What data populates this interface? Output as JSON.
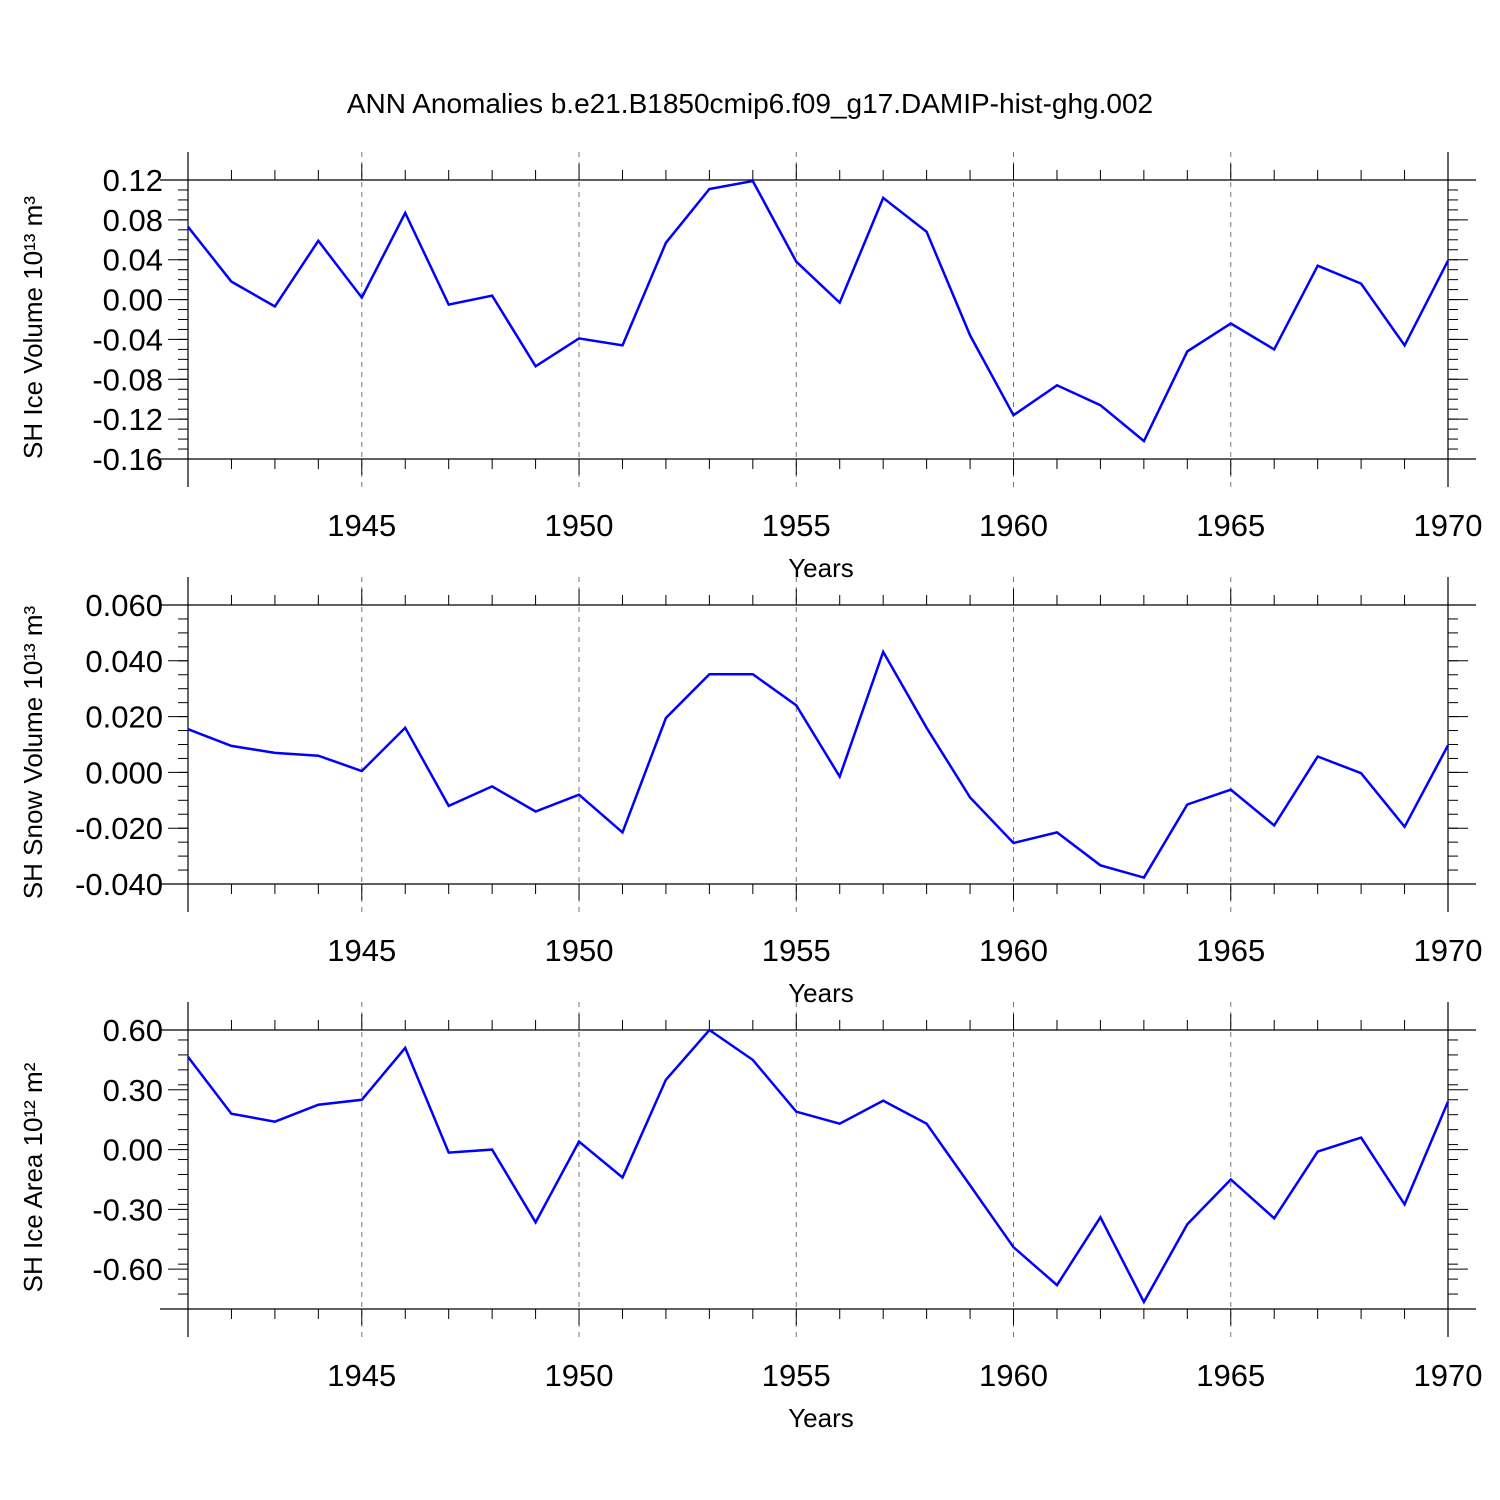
{
  "title": "ANN Anomalies b.e21.B1850cmip6.f09_g17.DAMIP-hist-ghg.002",
  "colors": {
    "line": "#0000ff",
    "frame": "#000000",
    "grid": "#777777"
  },
  "chart_data": [
    {
      "type": "line",
      "xlabel": "Years",
      "ylabel": "SH Ice Volume 10¹³ m³",
      "ylim": [
        -0.16,
        0.12
      ],
      "xlim": [
        1941,
        1970
      ],
      "yticks": [
        "0.12",
        "0.08",
        "0.04",
        "0.00",
        "-0.04",
        "-0.08",
        "-0.12",
        "-0.16"
      ],
      "xticks": [
        "1945",
        "1950",
        "1955",
        "1960",
        "1965",
        "1970"
      ],
      "grid": "vertical dashed at labeled years",
      "series": [
        {
          "x": [
            1941,
            1942,
            1943,
            1944,
            1945,
            1946,
            1947,
            1948,
            1949,
            1950,
            1951,
            1952,
            1953,
            1954,
            1955,
            1956,
            1957,
            1958,
            1959,
            1960,
            1961,
            1962,
            1963,
            1964,
            1965,
            1966,
            1967,
            1968,
            1969,
            1970
          ],
          "values": [
            0.073,
            0.018,
            -0.007,
            0.059,
            0.002,
            0.087,
            -0.005,
            0.004,
            -0.067,
            -0.039,
            -0.046,
            0.057,
            0.111,
            0.119,
            0.038,
            -0.003,
            0.102,
            0.068,
            -0.036,
            -0.116,
            -0.086,
            -0.106,
            -0.142,
            -0.052,
            -0.024,
            -0.05,
            0.034,
            0.016,
            -0.046,
            0.039
          ]
        }
      ]
    },
    {
      "type": "line",
      "xlabel": "Years",
      "ylabel": "SH Snow Volume 10¹³ m³",
      "ylim": [
        -0.04,
        0.06
      ],
      "xlim": [
        1941,
        1970
      ],
      "yticks": [
        "0.060",
        "0.040",
        "0.020",
        "0.000",
        "-0.020",
        "-0.040"
      ],
      "xticks": [
        "1945",
        "1950",
        "1955",
        "1960",
        "1965",
        "1970"
      ],
      "grid": "vertical dashed at labeled years",
      "series": [
        {
          "x": [
            1941,
            1942,
            1943,
            1944,
            1945,
            1946,
            1947,
            1948,
            1949,
            1950,
            1951,
            1952,
            1953,
            1954,
            1955,
            1956,
            1957,
            1958,
            1959,
            1960,
            1961,
            1962,
            1963,
            1964,
            1965,
            1966,
            1967,
            1968,
            1969,
            1970
          ],
          "values": [
            0.0155,
            0.0095,
            0.007,
            0.006,
            0.0005,
            0.016,
            -0.012,
            -0.005,
            -0.014,
            -0.008,
            -0.0215,
            0.0195,
            0.0352,
            0.0352,
            0.024,
            -0.0015,
            0.0432,
            0.016,
            -0.009,
            -0.0253,
            -0.0215,
            -0.0333,
            -0.0377,
            -0.0115,
            -0.0062,
            -0.019,
            0.0057,
            -0.0003,
            -0.0195,
            0.0097
          ]
        }
      ]
    },
    {
      "type": "line",
      "xlabel": "Years",
      "ylabel": "SH Ice Area 10¹² m²",
      "ylim": [
        -0.8,
        0.6
      ],
      "xlim": [
        1941,
        1970
      ],
      "yticks": [
        "0.60",
        "0.30",
        "0.00",
        "-0.30",
        "-0.60"
      ],
      "xticks": [
        "1945",
        "1950",
        "1955",
        "1960",
        "1965",
        "1970"
      ],
      "grid": "vertical dashed at labeled years",
      "series": [
        {
          "x": [
            1941,
            1942,
            1943,
            1944,
            1945,
            1946,
            1947,
            1948,
            1949,
            1950,
            1951,
            1952,
            1953,
            1954,
            1955,
            1956,
            1957,
            1958,
            1959,
            1960,
            1961,
            1962,
            1963,
            1964,
            1965,
            1966,
            1967,
            1968,
            1969,
            1970
          ],
          "values": [
            0.465,
            0.18,
            0.14,
            0.225,
            0.25,
            0.51,
            -0.015,
            0.0,
            -0.365,
            0.04,
            -0.14,
            0.35,
            0.6,
            0.45,
            0.19,
            0.13,
            0.245,
            0.13,
            -0.18,
            -0.49,
            -0.68,
            -0.34,
            -0.765,
            -0.375,
            -0.15,
            -0.345,
            -0.01,
            0.06,
            -0.275,
            0.24
          ]
        }
      ]
    }
  ]
}
